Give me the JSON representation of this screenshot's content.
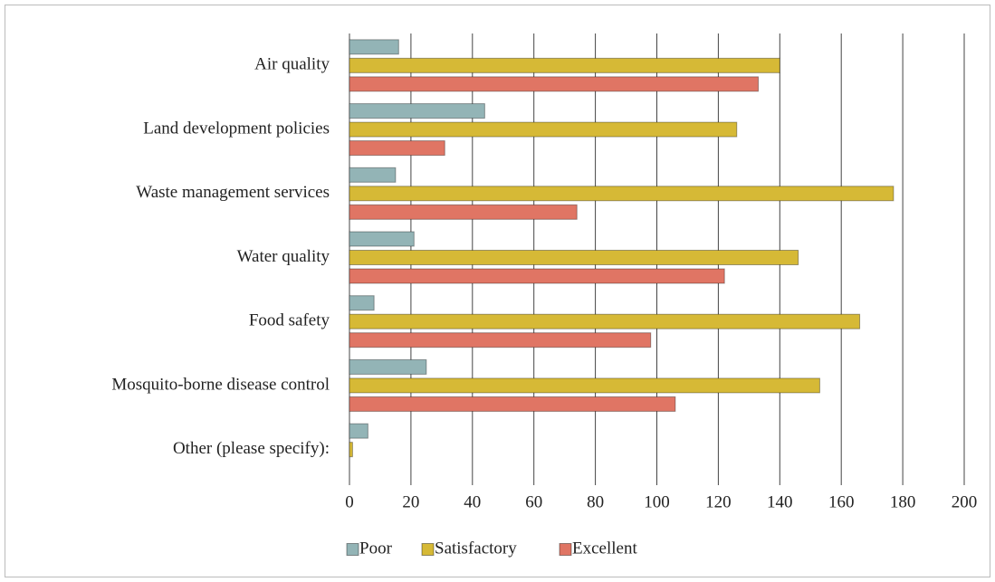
{
  "chart_data": {
    "type": "hbar",
    "categories": [
      "Air quality",
      "Land development policies",
      "Waste management services",
      "Water quality",
      "Food safety",
      "Mosquito-borne disease control",
      "Other (please specify):"
    ],
    "series": [
      {
        "name": "Poor",
        "color": "#93b4b6",
        "values": [
          16,
          44,
          15,
          21,
          8,
          25,
          6
        ]
      },
      {
        "name": "Satisfactory",
        "color": "#d6b936",
        "values": [
          140,
          126,
          177,
          146,
          166,
          153,
          1
        ]
      },
      {
        "name": "Excellent",
        "color": "#e07564",
        "values": [
          133,
          31,
          74,
          122,
          98,
          106,
          0
        ]
      }
    ],
    "xlim": [
      0,
      200
    ],
    "xticks": [
      0,
      20,
      40,
      60,
      80,
      100,
      120,
      140,
      160,
      180,
      200
    ],
    "grid": true,
    "legend": "bottom"
  }
}
